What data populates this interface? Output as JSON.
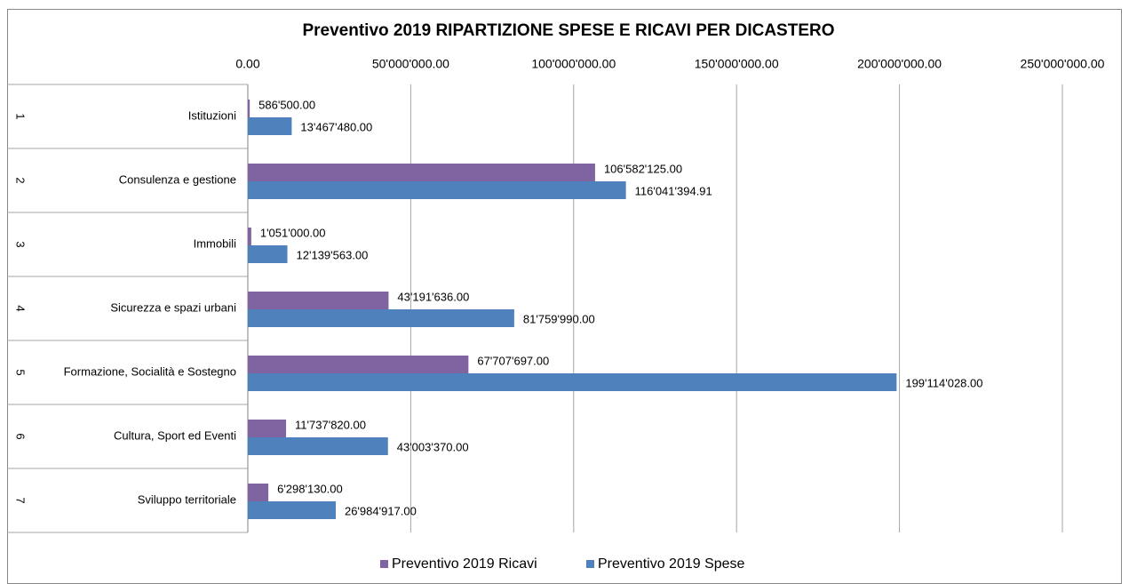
{
  "chart_data": {
    "type": "bar",
    "orientation": "horizontal",
    "title": "Preventivo 2019 RIPARTIZIONE  SPESE E RICAVI PER DICASTERO",
    "category_codes": [
      "1",
      "2",
      "3",
      "4",
      "5",
      "6",
      "7"
    ],
    "categories": [
      "Istituzioni",
      "Consulenza e gestione",
      "Immobili",
      "Sicurezza e spazi urbani",
      "Formazione, Socialità e Sostegno",
      "Cultura, Sport ed Eventi",
      "Sviluppo territoriale"
    ],
    "series": [
      {
        "name": "Preventivo 2019 Ricavi",
        "color": "#8064a2",
        "values": [
          586500,
          106582125,
          1051000,
          43191636,
          67707697,
          11737820,
          6298130
        ],
        "value_labels": [
          "586'500.00",
          "106'582'125.00",
          "1'051'000.00",
          "43'191'636.00",
          "67'707'697.00",
          "11'737'820.00",
          "6'298'130.00"
        ]
      },
      {
        "name": "Preventivo 2019 Spese",
        "color": "#4f81bd",
        "values": [
          13467480,
          116041394.91,
          12139563,
          81759990,
          199114028,
          43003370,
          26984917
        ],
        "value_labels": [
          "13'467'480.00",
          "116'041'394.91",
          "12'139'563.00",
          "81'759'990.00",
          "199'114'028.00",
          "43'003'370.00",
          "26'984'917.00"
        ]
      }
    ],
    "xlim": [
      0,
      250000000
    ],
    "xticks": [
      {
        "value": 0,
        "label": "0.00"
      },
      {
        "value": 50000000,
        "label": "50'000'000.00"
      },
      {
        "value": 100000000,
        "label": "100'000'000.00"
      },
      {
        "value": 150000000,
        "label": "150'000'000.00"
      },
      {
        "value": 200000000,
        "label": "200'000'000.00"
      },
      {
        "value": 250000000,
        "label": "250'000'000.00"
      }
    ],
    "grid": true,
    "legend": "bottom"
  }
}
